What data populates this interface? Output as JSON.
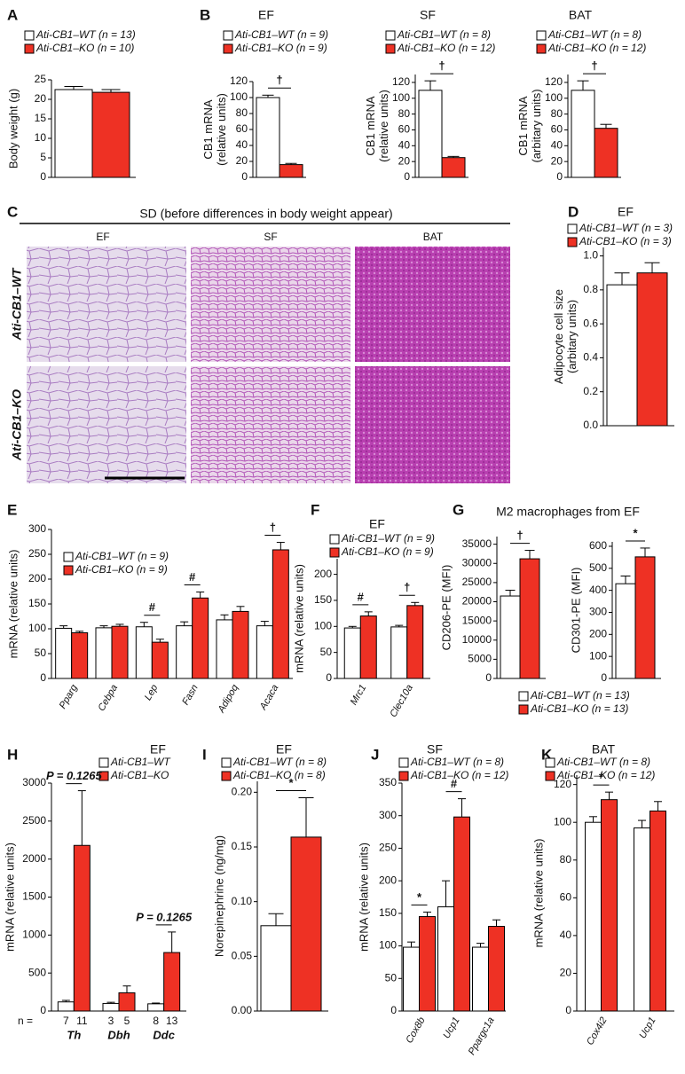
{
  "chart_data": [
    {
      "type": "bar",
      "panel": "A",
      "ylabel": [
        "Body weight (g)"
      ],
      "categories": [
        null
      ],
      "series": [
        {
          "name": "Ati-CB1–WT (n = 13)",
          "color": "#ffffff",
          "values": [
            22.5
          ],
          "errors": [
            0.8
          ]
        },
        {
          "name": "Ati-CB1–KO (n = 10)",
          "color": "#ee3124",
          "values": [
            21.8
          ],
          "errors": [
            0.7
          ]
        }
      ],
      "ylim": [
        0,
        25
      ],
      "yticks": [
        0,
        5,
        10,
        15,
        20,
        25
      ]
    },
    {
      "type": "bar",
      "panel": "B",
      "title": "EF",
      "ylabel": [
        "CB1 mRNA",
        "(relative units)"
      ],
      "categories": [
        null
      ],
      "series": [
        {
          "name": "Ati-CB1–WT (n = 9)",
          "color": "#ffffff",
          "values": [
            100
          ],
          "errors": [
            3
          ]
        },
        {
          "name": "Ati-CB1–KO (n = 9)",
          "color": "#ee3124",
          "values": [
            16
          ],
          "errors": [
            1.5
          ]
        }
      ],
      "ylim": [
        0,
        120
      ],
      "yticks": [
        0,
        20,
        40,
        60,
        80,
        100,
        120
      ],
      "significance": [
        {
          "label": "†",
          "category": 0
        }
      ]
    },
    {
      "type": "bar",
      "title": "SF",
      "ylabel": [
        "CB1 mRNA",
        "(relative units)"
      ],
      "categories": [
        null
      ],
      "series": [
        {
          "name": "Ati-CB1–WT (n = 8)",
          "color": "#ffffff",
          "values": [
            110
          ],
          "errors": [
            12
          ]
        },
        {
          "name": "Ati-CB1–KO (n = 12)",
          "color": "#ee3124",
          "values": [
            25
          ],
          "errors": [
            1.5
          ]
        }
      ],
      "ylim": [
        0,
        130
      ],
      "yticks": [
        0,
        20,
        40,
        60,
        80,
        100,
        120
      ],
      "significance": [
        {
          "label": "†",
          "category": 0
        }
      ]
    },
    {
      "type": "bar",
      "title": "BAT",
      "ylabel": [
        "CB1 mRNA",
        "(arbitary units)"
      ],
      "categories": [
        null
      ],
      "series": [
        {
          "name": "Ati-CB1–WT (n = 8)",
          "color": "#ffffff",
          "values": [
            110
          ],
          "errors": [
            12
          ]
        },
        {
          "name": "Ati-CB1–KO (n = 12)",
          "color": "#ee3124",
          "values": [
            62
          ],
          "errors": [
            5
          ]
        }
      ],
      "ylim": [
        0,
        130
      ],
      "yticks": [
        0,
        20,
        40,
        60,
        80,
        100,
        120
      ],
      "significance": [
        {
          "label": "†",
          "category": 0
        }
      ]
    },
    {
      "type": "bar",
      "panel": "D",
      "title": "EF",
      "ylabel": [
        "Adipocyte cell size",
        "(arbitary units)"
      ],
      "categories": [
        null
      ],
      "series": [
        {
          "name": "Ati-CB1–WT (n = 3)",
          "color": "#ffffff",
          "values": [
            0.83
          ],
          "errors": [
            0.07
          ]
        },
        {
          "name": "Ati-CB1–KO (n = 3)",
          "color": "#ee3124",
          "values": [
            0.9
          ],
          "errors": [
            0.06
          ]
        }
      ],
      "ylim": [
        0,
        1.05
      ],
      "yticks": [
        {
          "value": 0,
          "label": "0.0"
        },
        0.2,
        0.4,
        0.6,
        0.8,
        {
          "value": 1,
          "label": "1.0"
        }
      ]
    },
    {
      "type": "bar",
      "panel": "E",
      "ylabel": [
        "mRNA (relative units)"
      ],
      "categories": [
        "Pparg",
        "Cebpa",
        "Lep",
        "Fasn",
        "Adipoq",
        "Acaca"
      ],
      "series": [
        {
          "name": "Ati-CB1–WT (n = 9)",
          "color": "#ffffff",
          "values": [
            101,
            102,
            104,
            106,
            118,
            106
          ],
          "errors": [
            5,
            4,
            9,
            8,
            10,
            9
          ]
        },
        {
          "name": "Ati-CB1–KO (n = 9)",
          "color": "#ee3124",
          "values": [
            92,
            105,
            73,
            162,
            135,
            259
          ],
          "errors": [
            3,
            4,
            6,
            12,
            10,
            15
          ]
        }
      ],
      "ylim": [
        0,
        300
      ],
      "yticks": [
        0,
        50,
        100,
        150,
        200,
        250,
        300
      ],
      "significance": [
        {
          "label": "#",
          "category": 2
        },
        {
          "label": "#",
          "category": 3
        },
        {
          "label": "†",
          "category": 5
        }
      ]
    },
    {
      "type": "bar",
      "panel": "F",
      "title": "EF",
      "ylabel": [
        "mRNA (relative units)"
      ],
      "categories": [
        "Mrc1",
        "Clec10a"
      ],
      "series": [
        {
          "name": "Ati-CB1–WT (n = 9)",
          "color": "#ffffff",
          "values": [
            97,
            99
          ],
          "errors": [
            3,
            3
          ]
        },
        {
          "name": "Ati-CB1–KO (n = 9)",
          "color": "#ee3124",
          "values": [
            120,
            140
          ],
          "errors": [
            8,
            6
          ]
        }
      ],
      "ylim": [
        0,
        230
      ],
      "yticks": [
        0,
        50,
        100,
        150,
        200
      ],
      "significance": [
        {
          "label": "#",
          "category": 0
        },
        {
          "label": "†",
          "category": 1
        }
      ]
    },
    {
      "type": "bar",
      "panel": "G",
      "title": "M2 macrophages from EF",
      "ylabel": [
        "CD206-PE (MFI)"
      ],
      "categories": [
        null
      ],
      "series": [
        {
          "name": "Ati-CB1–WT  (n = 13)",
          "color": "#ffffff",
          "values": [
            21500
          ],
          "errors": [
            1500
          ]
        },
        {
          "name": "Ati-CB1–KO  (n = 13)",
          "color": "#ee3124",
          "values": [
            31200
          ],
          "errors": [
            2200
          ]
        }
      ],
      "ylim": [
        0,
        37000
      ],
      "yticks": [
        0,
        5000,
        10000,
        15000,
        20000,
        25000,
        30000,
        35000
      ],
      "significance": [
        {
          "label": "†",
          "category": 0
        }
      ]
    },
    {
      "type": "bar",
      "ylabel": [
        "CD301-PE (MFI)"
      ],
      "categories": [
        null
      ],
      "series": [
        {
          "color": "#ffffff",
          "values": [
            430
          ],
          "errors": [
            35
          ]
        },
        {
          "color": "#ee3124",
          "values": [
            552
          ],
          "errors": [
            40
          ]
        }
      ],
      "ylim": [
        0,
        620
      ],
      "yticks": [
        0,
        100,
        200,
        300,
        400,
        500,
        600
      ],
      "significance": [
        {
          "label": "*",
          "category": 0
        }
      ]
    },
    {
      "type": "bar",
      "panel": "H",
      "title": "EF",
      "ylabel": [
        "mRNA (relative units)"
      ],
      "categories": [
        "Th",
        "Dbh",
        "Ddc"
      ],
      "n_label": "n =",
      "series": [
        {
          "name": "Ati-CB1–WT",
          "color": "#ffffff",
          "values": [
            120,
            100,
            95
          ],
          "errors": [
            20,
            15,
            10
          ],
          "n": [
            7,
            3,
            8
          ]
        },
        {
          "name": "Ati-CB1–KO",
          "color": "#ee3124",
          "values": [
            2180,
            240,
            770
          ],
          "errors": [
            720,
            90,
            270
          ],
          "n": [
            11,
            5,
            13
          ]
        }
      ],
      "ylim": [
        0,
        3000
      ],
      "yticks": [
        0,
        500,
        1000,
        1500,
        2000,
        2500,
        3000
      ],
      "significance": [
        {
          "label": "P = 0.1265",
          "category": 0
        },
        {
          "label": "P = 0.1265",
          "category": 2
        }
      ]
    },
    {
      "type": "bar",
      "panel": "I",
      "title": "EF",
      "ylabel": [
        "Norepinephrine (ng/mg)"
      ],
      "categories": [
        null
      ],
      "series": [
        {
          "name": "Ati-CB1–WT (n = 8)",
          "color": "#ffffff",
          "values": [
            0.078
          ],
          "errors": [
            0.011
          ]
        },
        {
          "name": "Ati-CB1–KO (n = 8)",
          "color": "#ee3124",
          "values": [
            0.159
          ],
          "errors": [
            0.036
          ]
        }
      ],
      "ylim": [
        0,
        0.21
      ],
      "yticks": [
        {
          "value": 0,
          "label": "0.00"
        },
        {
          "value": 0.05,
          "label": "0.05"
        },
        {
          "value": 0.1,
          "label": "0.10"
        },
        {
          "value": 0.15,
          "label": "0.15"
        },
        {
          "value": 0.2,
          "label": "0.20"
        }
      ],
      "significance": [
        {
          "label": "*",
          "category": 0
        }
      ]
    },
    {
      "type": "bar",
      "panel": "J",
      "title": "SF",
      "ylabel": [
        "mRNA (relative units)"
      ],
      "categories": [
        "Cox8b",
        "Ucp1",
        "Ppargc1a"
      ],
      "series": [
        {
          "name": "Ati-CB1–WT (n = 8)",
          "color": "#ffffff",
          "values": [
            98,
            160,
            98
          ],
          "errors": [
            8,
            40,
            6
          ]
        },
        {
          "name": "Ati-CB1–KO (n = 12)",
          "color": "#ee3124",
          "values": [
            145,
            298,
            130
          ],
          "errors": [
            7,
            28,
            10
          ]
        }
      ],
      "ylim": [
        0,
        350
      ],
      "yticks": [
        0,
        50,
        100,
        150,
        200,
        250,
        300,
        350
      ],
      "significance": [
        {
          "label": "*",
          "category": 0
        },
        {
          "label": "#",
          "category": 1
        }
      ]
    },
    {
      "type": "bar",
      "panel": "K",
      "title": "BAT",
      "ylabel": [
        "mRNA (relative units)"
      ],
      "categories": [
        "Cox4i2",
        "Ucp1"
      ],
      "series": [
        {
          "name": "Ati-CB1–WT (n = 8)",
          "color": "#ffffff",
          "values": [
            100,
            97
          ],
          "errors": [
            3,
            4
          ]
        },
        {
          "name": "Ati-CB1–KO (n = 12)",
          "color": "#ee3124",
          "values": [
            112,
            106
          ],
          "errors": [
            4,
            5
          ]
        }
      ],
      "ylim": [
        0,
        125
      ],
      "yticks": [
        0,
        20,
        40,
        60,
        80,
        100,
        120
      ],
      "significance": [
        {
          "label": "*",
          "category": 0
        }
      ]
    }
  ],
  "histology": {
    "panel": "C",
    "title": "SD (before differences in body weight appear)",
    "columns": [
      "EF",
      "SF",
      "BAT"
    ],
    "rows": [
      "Ati-CB1–WT",
      "Ati-CB1–KO"
    ]
  }
}
